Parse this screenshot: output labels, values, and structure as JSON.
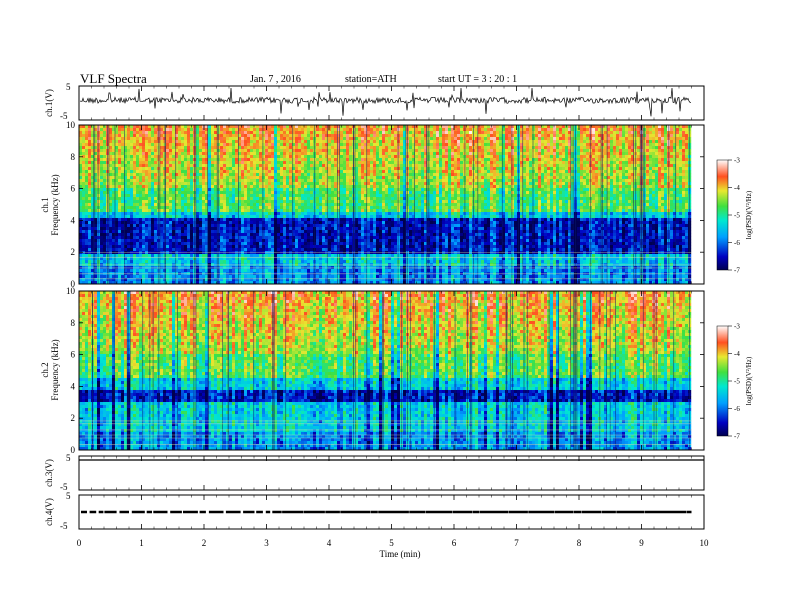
{
  "header": {
    "title": "VLF  Spectra",
    "date": "Jan. 7 , 2016",
    "station": "station=ATH",
    "start": "start  UT  =   3  : 20 : 1"
  },
  "chart_data": [
    {
      "type": "line",
      "panel": "ch1-waveform",
      "ylabel": "ch.1(V)",
      "ytick_labels": [
        "5",
        "-5"
      ],
      "ylim": [
        -5,
        5
      ],
      "xlim": [
        0,
        10
      ]
    },
    {
      "type": "heatmap",
      "panel": "ch1-spectrogram",
      "ylabel_line1": "ch.1",
      "ylabel_line2": "Frequency  (kHz)",
      "ylim": [
        0,
        10
      ],
      "ytick_labels": [
        "0",
        "2",
        "4",
        "6",
        "8",
        "10"
      ],
      "xlim": [
        0,
        9.8
      ],
      "colorbar": {
        "label": "log(PSD)(V²/Hz)",
        "range": [
          -7,
          -3
        ],
        "tick_labels": [
          "-3",
          "-4",
          "-5",
          "-6",
          "-7"
        ]
      }
    },
    {
      "type": "heatmap",
      "panel": "ch2-spectrogram",
      "ylabel_line1": "ch.2",
      "ylabel_line2": "Frequency  (kHz)",
      "ylim": [
        0,
        10
      ],
      "ytick_labels": [
        "0",
        "2",
        "4",
        "6",
        "8",
        "10"
      ],
      "xlim": [
        0,
        9.8
      ],
      "colorbar": {
        "label": "log(PSD)(V²/Hz)",
        "range": [
          -7,
          -3
        ],
        "tick_labels": [
          "-3",
          "-4",
          "-5",
          "-6",
          "-7"
        ]
      }
    },
    {
      "type": "line",
      "panel": "ch3-waveform",
      "ylabel": "ch.3(V)",
      "ytick_labels": [
        "5",
        "-5"
      ],
      "ylim": [
        -5,
        5
      ]
    },
    {
      "type": "line",
      "panel": "ch4-waveform",
      "ylabel": "ch.4(V)",
      "ytick_labels": [
        "5",
        "-5"
      ],
      "ylim": [
        -5,
        5
      ]
    }
  ],
  "xaxis": {
    "label": "Time  (min)",
    "tick_labels": [
      "0",
      "1",
      "2",
      "3",
      "4",
      "5",
      "6",
      "7",
      "8",
      "9",
      "10"
    ],
    "range": [
      0,
      10
    ]
  }
}
